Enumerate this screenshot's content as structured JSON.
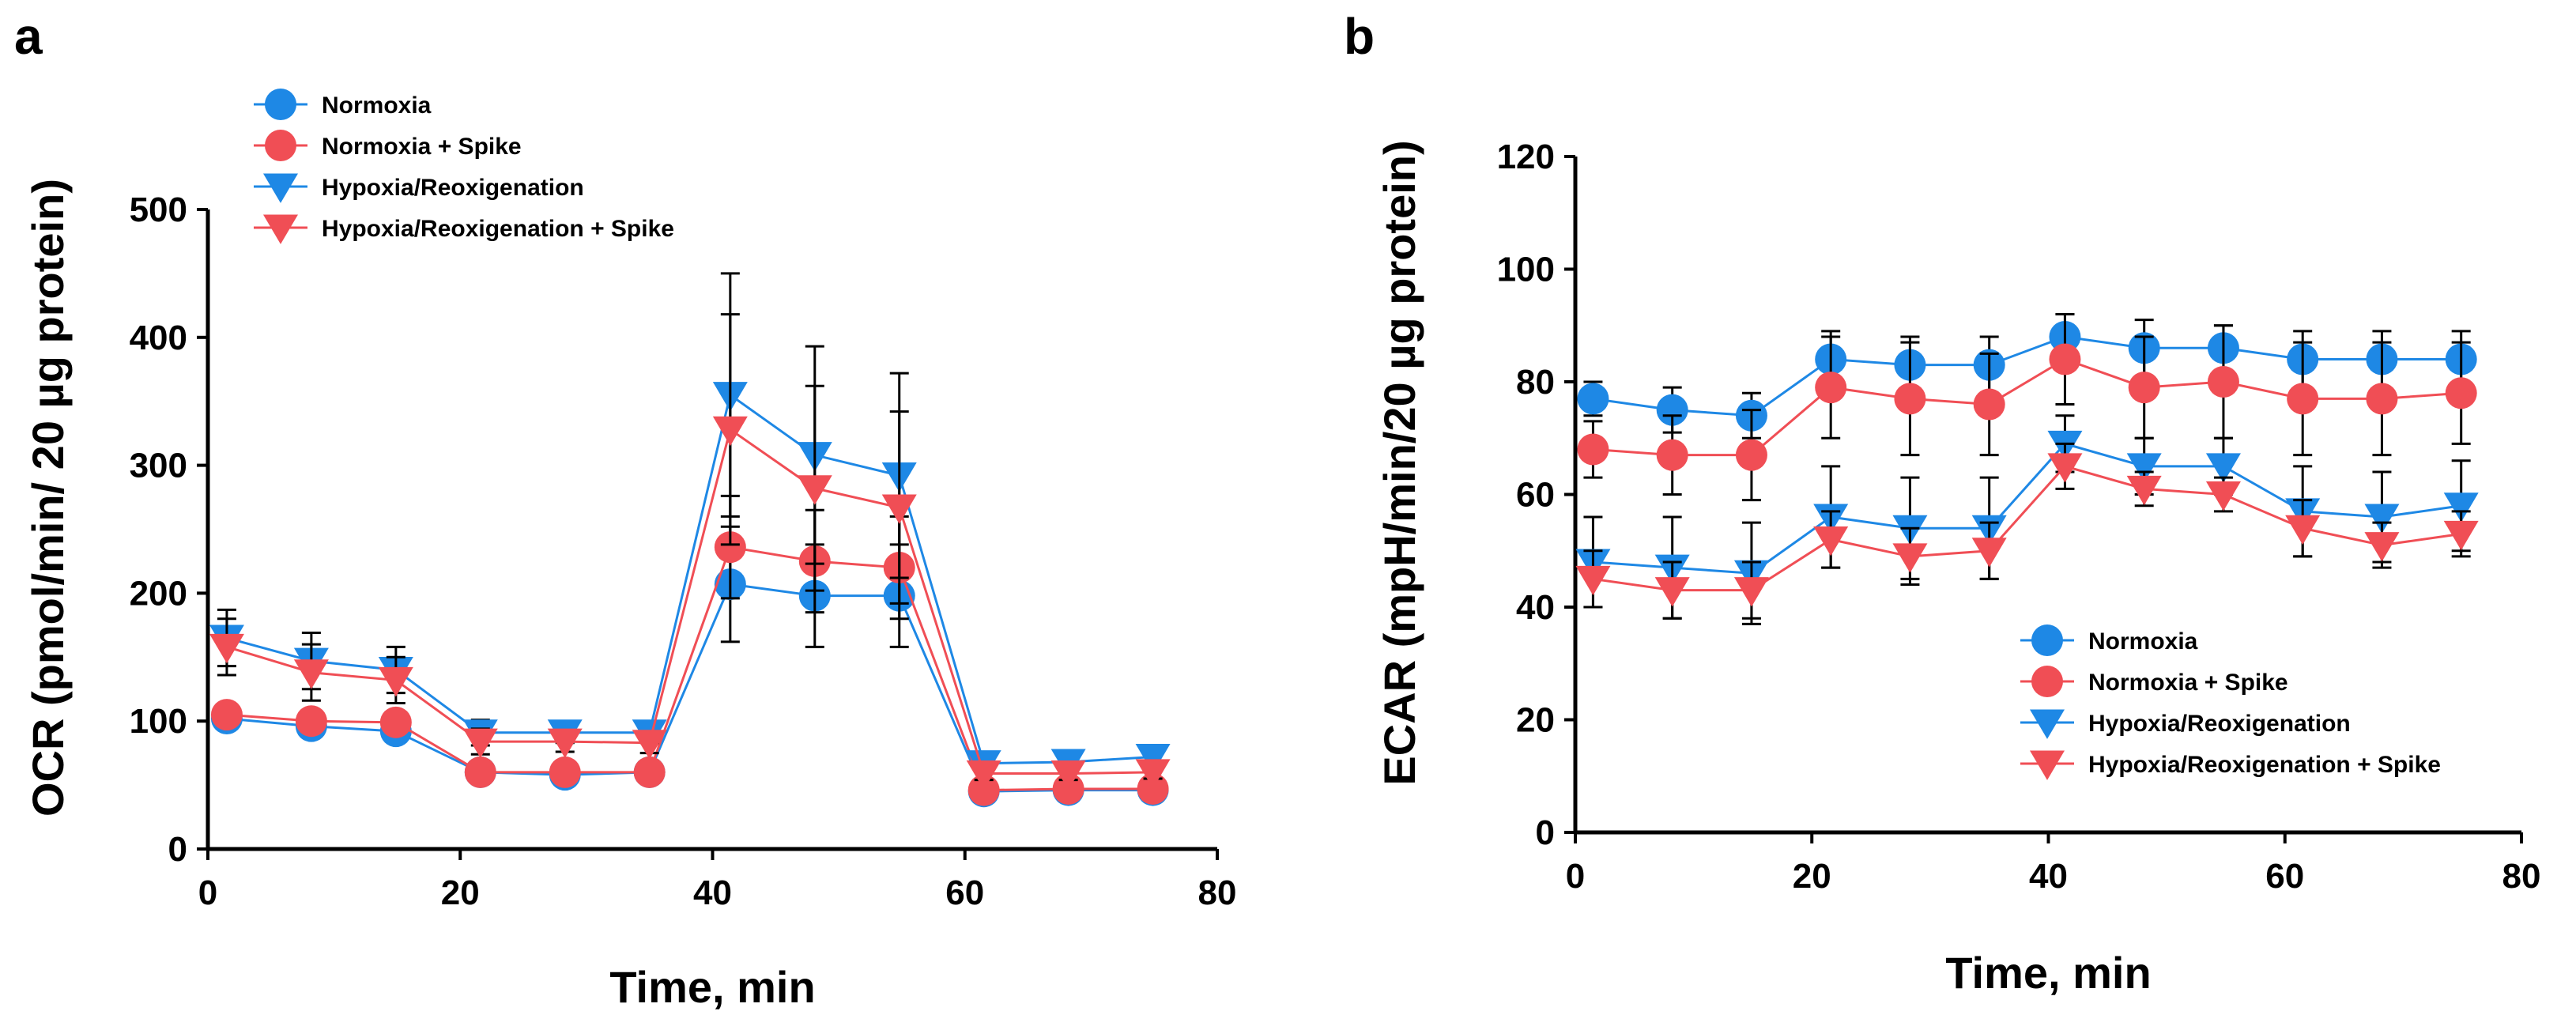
{
  "colors": {
    "normoxia": "#1E88E5",
    "normoxia_spike": "#F04E55",
    "hypoxia": "#1E88E5",
    "hypoxia_spike": "#F04E55"
  },
  "chart_data": [
    {
      "panel": "a",
      "type": "line",
      "title": "",
      "xlabel": "Time, min",
      "ylabel": "OCR (pmol/min/ 20 µg protein)",
      "xlim": [
        0,
        80
      ],
      "ylim": [
        0,
        500
      ],
      "xticks": [
        "0",
        "20",
        "40",
        "60",
        "80"
      ],
      "yticks": [
        "0",
        "100",
        "200",
        "300",
        "400",
        "500"
      ],
      "legend_position": "top-left",
      "x": [
        1.5,
        8.2,
        14.9,
        21.6,
        28.3,
        35.0,
        41.4,
        48.1,
        54.8,
        61.5,
        68.2,
        74.9
      ],
      "series": [
        {
          "name": "Normoxia",
          "marker": "circle",
          "color_key": "normoxia",
          "values": [
            102,
            96,
            92,
            60,
            58,
            60,
            207,
            198,
            198,
            45,
            46,
            46
          ],
          "errors": [
            8,
            8,
            8,
            5,
            5,
            5,
            45,
            40,
            40,
            5,
            5,
            5
          ]
        },
        {
          "name": "Normoxia + Spike",
          "marker": "circle",
          "color_key": "normoxia_spike",
          "values": [
            105,
            100,
            99,
            60,
            60,
            60,
            236,
            225,
            220,
            46,
            47,
            47
          ],
          "errors": [
            8,
            8,
            8,
            5,
            5,
            5,
            40,
            40,
            40,
            5,
            5,
            5
          ]
        },
        {
          "name": "Hypoxia/Reoxigenation",
          "marker": "triangle-down",
          "color_key": "hypoxia",
          "values": [
            165,
            147,
            140,
            91,
            91,
            91,
            355,
            308,
            292,
            67,
            68,
            72
          ],
          "errors": [
            22,
            22,
            18,
            10,
            8,
            8,
            95,
            85,
            80,
            5,
            5,
            5
          ]
        },
        {
          "name": "Hypoxia/Reoxigenation + Spike",
          "marker": "triangle-down",
          "color_key": "hypoxia_spike",
          "values": [
            158,
            138,
            132,
            84,
            84,
            83,
            328,
            282,
            267,
            59,
            59,
            60
          ],
          "errors": [
            22,
            22,
            18,
            10,
            8,
            8,
            90,
            80,
            75,
            5,
            5,
            5
          ]
        }
      ]
    },
    {
      "panel": "b",
      "type": "line",
      "title": "",
      "xlabel": "Time, min",
      "ylabel": "ECAR (mpH/min/20 µg protein)",
      "xlim": [
        0,
        80
      ],
      "ylim": [
        0,
        120
      ],
      "xticks": [
        "0",
        "20",
        "40",
        "60",
        "80"
      ],
      "yticks": [
        "0",
        "20",
        "40",
        "60",
        "80",
        "100",
        "120"
      ],
      "legend_position": "bottom-right",
      "x": [
        1.5,
        8.2,
        14.9,
        21.6,
        28.3,
        35.0,
        41.4,
        48.1,
        54.8,
        61.5,
        68.2,
        74.9
      ],
      "series": [
        {
          "name": "Normoxia",
          "marker": "circle",
          "color_key": "normoxia",
          "values": [
            77,
            75,
            74,
            84,
            83,
            83,
            88,
            86,
            86,
            84,
            84,
            84
          ],
          "errors": [
            3,
            4,
            4,
            5,
            5,
            5,
            4,
            5,
            4,
            5,
            5,
            5
          ]
        },
        {
          "name": "Normoxia + Spike",
          "marker": "circle",
          "color_key": "normoxia_spike",
          "values": [
            68,
            67,
            67,
            79,
            77,
            76,
            84,
            79,
            80,
            77,
            77,
            78
          ],
          "errors": [
            5,
            7,
            8,
            9,
            10,
            9,
            8,
            9,
            10,
            10,
            10,
            9
          ]
        },
        {
          "name": "Hypoxia/Reoxigenation",
          "marker": "triangle-down",
          "color_key": "hypoxia",
          "values": [
            48,
            47,
            46,
            56,
            54,
            54,
            69,
            65,
            65,
            57,
            56,
            58
          ],
          "errors": [
            8,
            9,
            9,
            9,
            9,
            9,
            5,
            5,
            5,
            8,
            8,
            8
          ]
        },
        {
          "name": "Hypoxia/Reoxigenation + Spike",
          "marker": "triangle-down",
          "color_key": "hypoxia_spike",
          "values": [
            45,
            43,
            43,
            52,
            49,
            50,
            65,
            61,
            60,
            54,
            51,
            53
          ],
          "errors": [
            5,
            5,
            5,
            5,
            5,
            5,
            4,
            3,
            3,
            5,
            4,
            4
          ]
        }
      ]
    }
  ]
}
